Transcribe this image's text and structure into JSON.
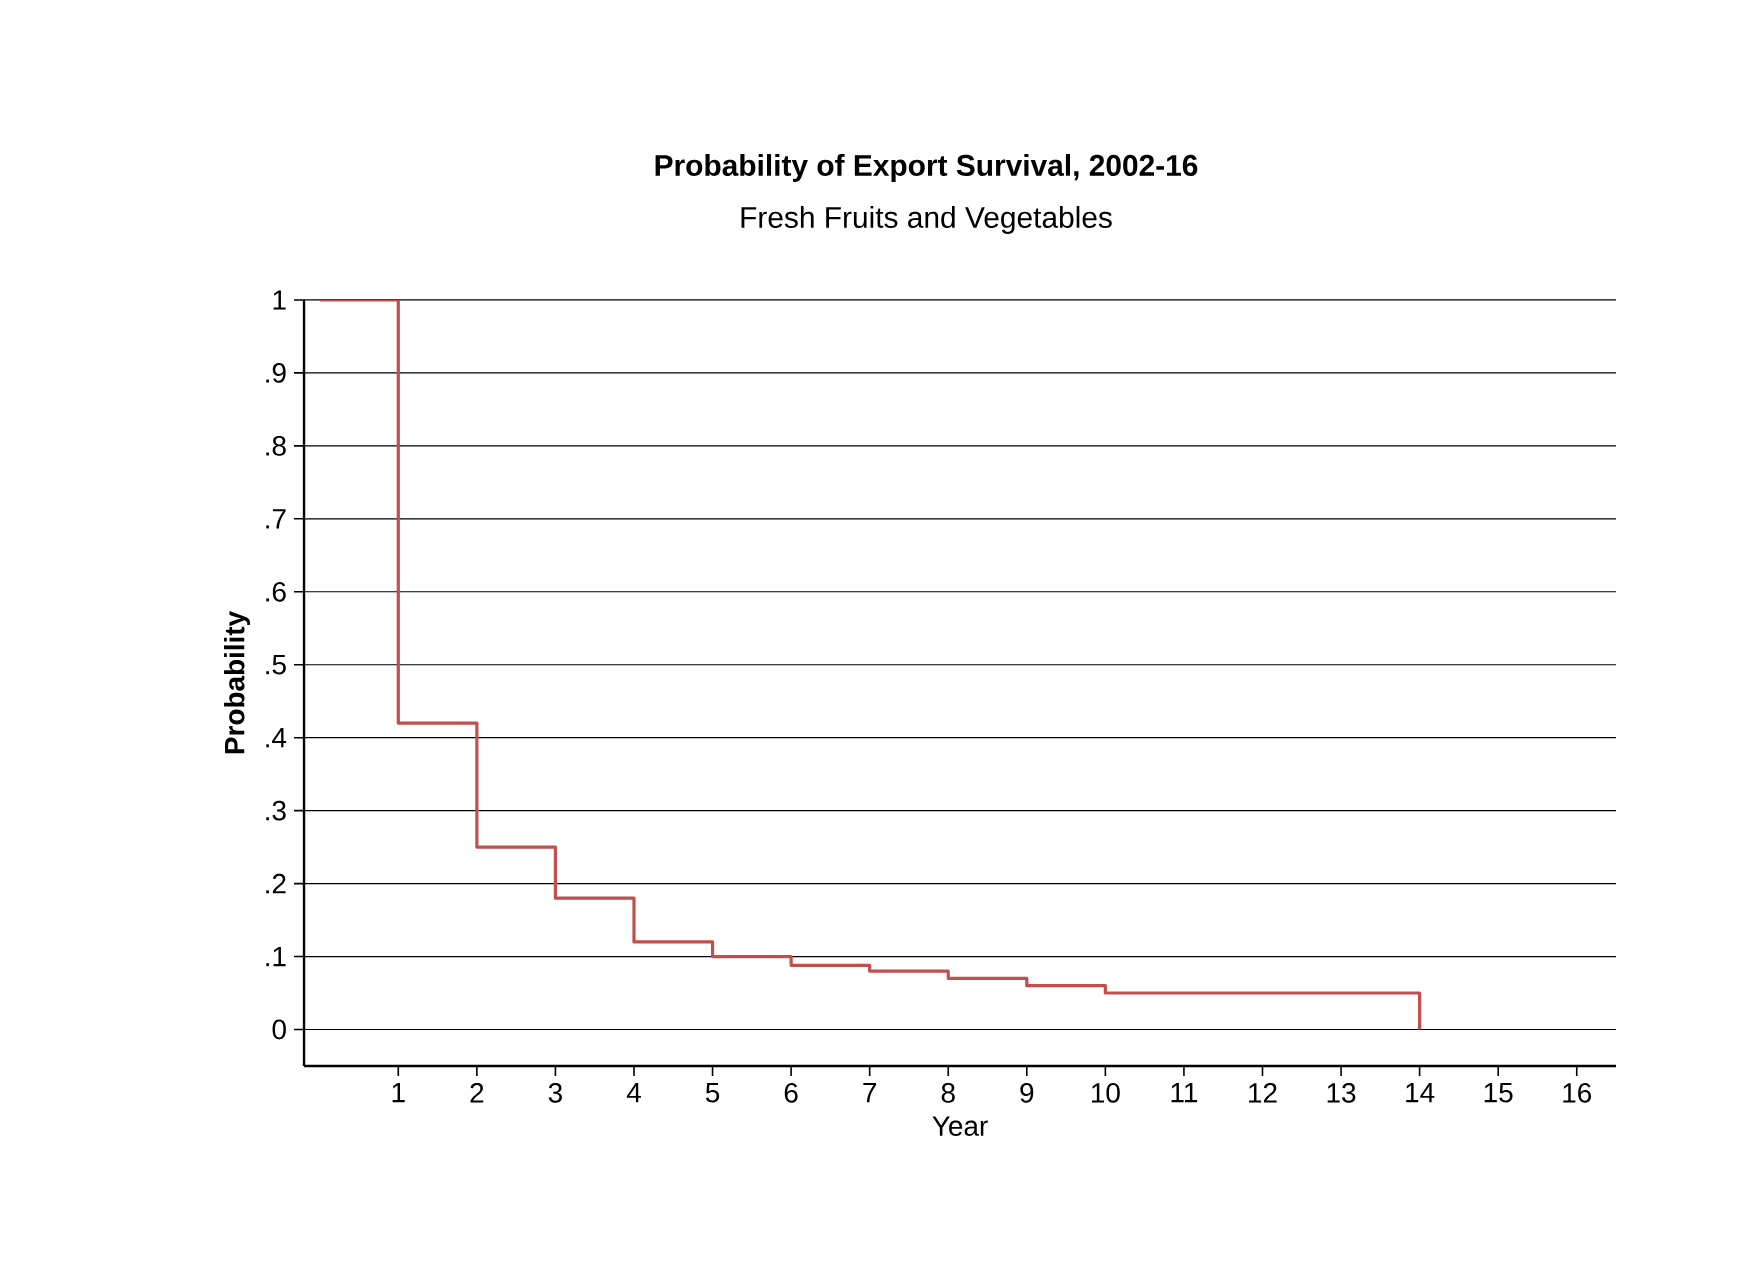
{
  "chart_data": {
    "type": "step",
    "title": "Probability of Export Survival, 2002-16",
    "subtitle": "Fresh Fruits and Vegetables",
    "xlabel": "Year",
    "ylabel": "Probability",
    "x": [
      0,
      1,
      2,
      3,
      4,
      5,
      6,
      7,
      8,
      9,
      10,
      14
    ],
    "series": [
      {
        "color": "#c0504d",
        "values": [
          1,
          0.42,
          0.25,
          0.18,
          0.12,
          0.1,
          0.088,
          0.08,
          0.07,
          0.06,
          0.05,
          0
        ]
      }
    ],
    "xlim": [
      -0.2,
      16.5
    ],
    "ylim": [
      -0.05,
      1
    ],
    "xticks": [
      1,
      2,
      3,
      4,
      5,
      6,
      7,
      8,
      9,
      10,
      11,
      12,
      13,
      14,
      15,
      16
    ],
    "yticks": [
      0,
      {
        "value": 0.1,
        "label": ".1"
      },
      {
        "value": 0.2,
        "label": ".2"
      },
      {
        "value": 0.3,
        "label": ".3"
      },
      {
        "value": 0.4,
        "label": ".4"
      },
      {
        "value": 0.5,
        "label": ".5"
      },
      {
        "value": 0.6,
        "label": ".6"
      },
      {
        "value": 0.7,
        "label": ".7"
      },
      {
        "value": 0.8,
        "label": ".8"
      },
      {
        "value": 0.9,
        "label": ".9"
      },
      1
    ],
    "grid": "y",
    "marker": "none",
    "line_style": "solid"
  }
}
